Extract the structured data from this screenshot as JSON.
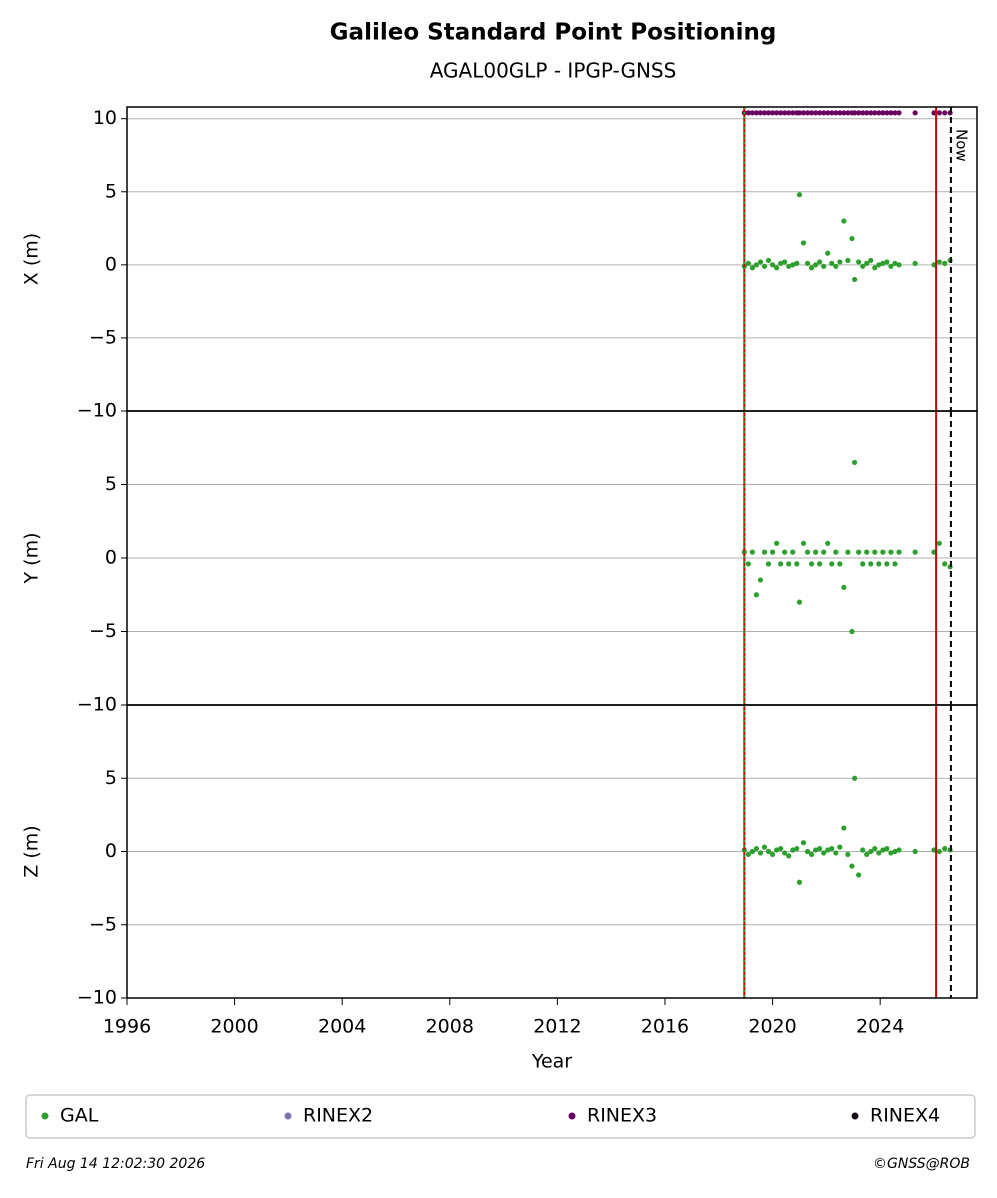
{
  "title": "Galileo Standard Point Positioning",
  "subtitle": "AGAL00GLP - IPGP-GNSS",
  "footer_left": "Fri Aug 14 12:02:30 2026",
  "footer_right": "©GNSS@ROB",
  "vlines": [
    {
      "x": 2018.95,
      "color": "#d00000",
      "style": "solid"
    },
    {
      "x": 2018.95,
      "color": "#2ca02c",
      "style": "dotted"
    },
    {
      "x": 2026.08,
      "color": "#d00000",
      "style": "solid"
    },
    {
      "x": 2026.63,
      "color": "#000000",
      "style": "dashed",
      "label": "Now"
    }
  ],
  "chart_data": [
    {
      "type": "scatter",
      "ylabel": "X (m)",
      "xlim": [
        1996,
        2027.6
      ],
      "ylim": [
        -10,
        10.8
      ],
      "yticks": [
        {
          "value": -10,
          "label": "−10"
        },
        {
          "value": -5,
          "label": "−5"
        },
        0,
        5,
        10
      ],
      "grid": true,
      "x": [
        2018.95,
        2019.1,
        2019.25,
        2019.4,
        2019.55,
        2019.7,
        2019.85,
        2020.0,
        2020.15,
        2020.3,
        2020.45,
        2020.6,
        2020.75,
        2020.9,
        2021.0,
        2021.15,
        2021.3,
        2021.45,
        2021.6,
        2021.75,
        2021.9,
        2022.05,
        2022.2,
        2022.35,
        2022.5,
        2022.65,
        2022.8,
        2022.95,
        2023.05,
        2023.2,
        2023.35,
        2023.5,
        2023.65,
        2023.8,
        2023.95,
        2024.1,
        2024.25,
        2024.4,
        2024.55,
        2024.7,
        2025.3,
        2026.0,
        2026.2,
        2026.4,
        2026.6
      ],
      "series": [
        {
          "name": "GAL",
          "color": "#2ca02c",
          "values": [
            -0.1,
            0.1,
            -0.2,
            0.0,
            0.2,
            -0.1,
            0.3,
            0.0,
            -0.2,
            0.1,
            0.2,
            -0.1,
            0.0,
            0.1,
            4.8,
            1.5,
            0.1,
            -0.2,
            0.0,
            0.2,
            -0.1,
            0.8,
            0.1,
            -0.1,
            0.2,
            3.0,
            0.3,
            1.8,
            -1.0,
            0.2,
            -0.1,
            0.1,
            0.3,
            -0.2,
            0.0,
            0.1,
            0.2,
            -0.1,
            0.1,
            0.0,
            0.1,
            0.0,
            0.2,
            0.1,
            0.3
          ]
        },
        {
          "name": "RINEX2",
          "color": "#8172b3",
          "values": [
            null,
            null,
            null,
            null,
            null,
            null,
            null,
            null,
            null,
            null,
            null,
            null,
            null,
            null,
            null,
            null,
            null,
            null,
            null,
            null,
            null,
            null,
            null,
            null,
            null,
            null,
            null,
            null,
            null,
            null,
            null,
            null,
            null,
            null,
            null,
            null,
            null,
            null,
            null,
            null,
            null,
            null,
            null,
            null,
            null
          ]
        },
        {
          "name": "RINEX3",
          "color": "#6a0060",
          "values": [
            10.4,
            10.4,
            10.4,
            10.4,
            10.4,
            10.4,
            10.4,
            10.4,
            10.4,
            10.4,
            10.4,
            10.4,
            10.4,
            10.4,
            10.4,
            10.4,
            10.4,
            10.4,
            10.4,
            10.4,
            10.4,
            10.4,
            10.4,
            10.4,
            10.4,
            10.4,
            10.4,
            10.4,
            10.4,
            10.4,
            10.4,
            10.4,
            10.4,
            10.4,
            10.4,
            10.4,
            10.4,
            10.4,
            10.4,
            10.4,
            10.4,
            10.4,
            10.4,
            10.4,
            10.4
          ]
        },
        {
          "name": "RINEX4",
          "color": "#1a0a1a",
          "values": [
            null,
            null,
            null,
            null,
            null,
            null,
            null,
            null,
            null,
            null,
            null,
            null,
            null,
            null,
            null,
            null,
            null,
            null,
            null,
            null,
            null,
            null,
            null,
            null,
            null,
            null,
            null,
            null,
            null,
            null,
            null,
            null,
            null,
            null,
            null,
            null,
            null,
            null,
            null,
            null,
            null,
            null,
            null,
            null,
            null
          ]
        }
      ]
    },
    {
      "type": "scatter",
      "ylabel": "Y (m)",
      "xlim": [
        1996,
        2027.6
      ],
      "ylim": [
        -10,
        10
      ],
      "yticks": [
        {
          "value": -10,
          "label": "−10"
        },
        {
          "value": -5,
          "label": "−5"
        },
        0,
        5
      ],
      "grid": true,
      "x": [
        2018.95,
        2019.1,
        2019.25,
        2019.4,
        2019.55,
        2019.7,
        2019.85,
        2020.0,
        2020.15,
        2020.3,
        2020.45,
        2020.6,
        2020.75,
        2020.9,
        2021.0,
        2021.15,
        2021.3,
        2021.45,
        2021.6,
        2021.75,
        2021.9,
        2022.05,
        2022.2,
        2022.35,
        2022.5,
        2022.65,
        2022.8,
        2022.95,
        2023.05,
        2023.2,
        2023.35,
        2023.5,
        2023.65,
        2023.8,
        2023.95,
        2024.1,
        2024.25,
        2024.4,
        2024.55,
        2024.7,
        2025.3,
        2026.0,
        2026.2,
        2026.4,
        2026.6
      ],
      "series": [
        {
          "name": "GAL",
          "color": "#2ca02c",
          "values": [
            0.4,
            -0.4,
            0.4,
            -2.5,
            -1.5,
            0.4,
            -0.4,
            0.4,
            1.0,
            -0.4,
            0.4,
            -0.4,
            0.4,
            -0.4,
            -3.0,
            1.0,
            0.4,
            -0.4,
            0.4,
            -0.4,
            0.4,
            1.0,
            -0.4,
            0.4,
            -0.4,
            -2.0,
            0.4,
            -5.0,
            6.5,
            0.4,
            -0.4,
            0.4,
            -0.4,
            0.4,
            -0.4,
            0.4,
            -0.4,
            0.4,
            -0.4,
            0.4,
            0.4,
            0.4,
            1.0,
            -0.4,
            -0.6
          ]
        }
      ]
    },
    {
      "type": "scatter",
      "ylabel": "Z (m)",
      "xlabel": "Year",
      "xlim": [
        1996,
        2027.6
      ],
      "ylim": [
        -10,
        10
      ],
      "yticks": [
        {
          "value": -10,
          "label": "−10"
        },
        {
          "value": -5,
          "label": "−5"
        },
        0,
        5
      ],
      "grid": true,
      "xticks": [
        1996,
        2000,
        2004,
        2008,
        2012,
        2016,
        2020,
        2024
      ],
      "x": [
        2018.95,
        2019.1,
        2019.25,
        2019.4,
        2019.55,
        2019.7,
        2019.85,
        2020.0,
        2020.15,
        2020.3,
        2020.45,
        2020.6,
        2020.75,
        2020.9,
        2021.0,
        2021.15,
        2021.3,
        2021.45,
        2021.6,
        2021.75,
        2021.9,
        2022.05,
        2022.2,
        2022.35,
        2022.5,
        2022.65,
        2022.8,
        2022.95,
        2023.05,
        2023.2,
        2023.35,
        2023.5,
        2023.65,
        2023.8,
        2023.95,
        2024.1,
        2024.25,
        2024.4,
        2024.55,
        2024.7,
        2025.3,
        2026.0,
        2026.2,
        2026.4,
        2026.6
      ],
      "series": [
        {
          "name": "GAL",
          "color": "#2ca02c",
          "values": [
            0.1,
            -0.2,
            0.0,
            0.2,
            -0.1,
            0.3,
            0.0,
            -0.2,
            0.1,
            0.2,
            -0.1,
            -0.3,
            0.1,
            0.2,
            -2.1,
            0.6,
            0.0,
            -0.2,
            0.1,
            0.2,
            -0.1,
            0.1,
            0.2,
            -0.1,
            0.3,
            1.6,
            -0.2,
            -1.0,
            5.0,
            -1.6,
            0.1,
            -0.2,
            0.0,
            0.2,
            -0.1,
            0.1,
            0.2,
            -0.1,
            0.0,
            0.1,
            0.0,
            0.1,
            0.0,
            0.2,
            0.1
          ]
        }
      ]
    }
  ]
}
